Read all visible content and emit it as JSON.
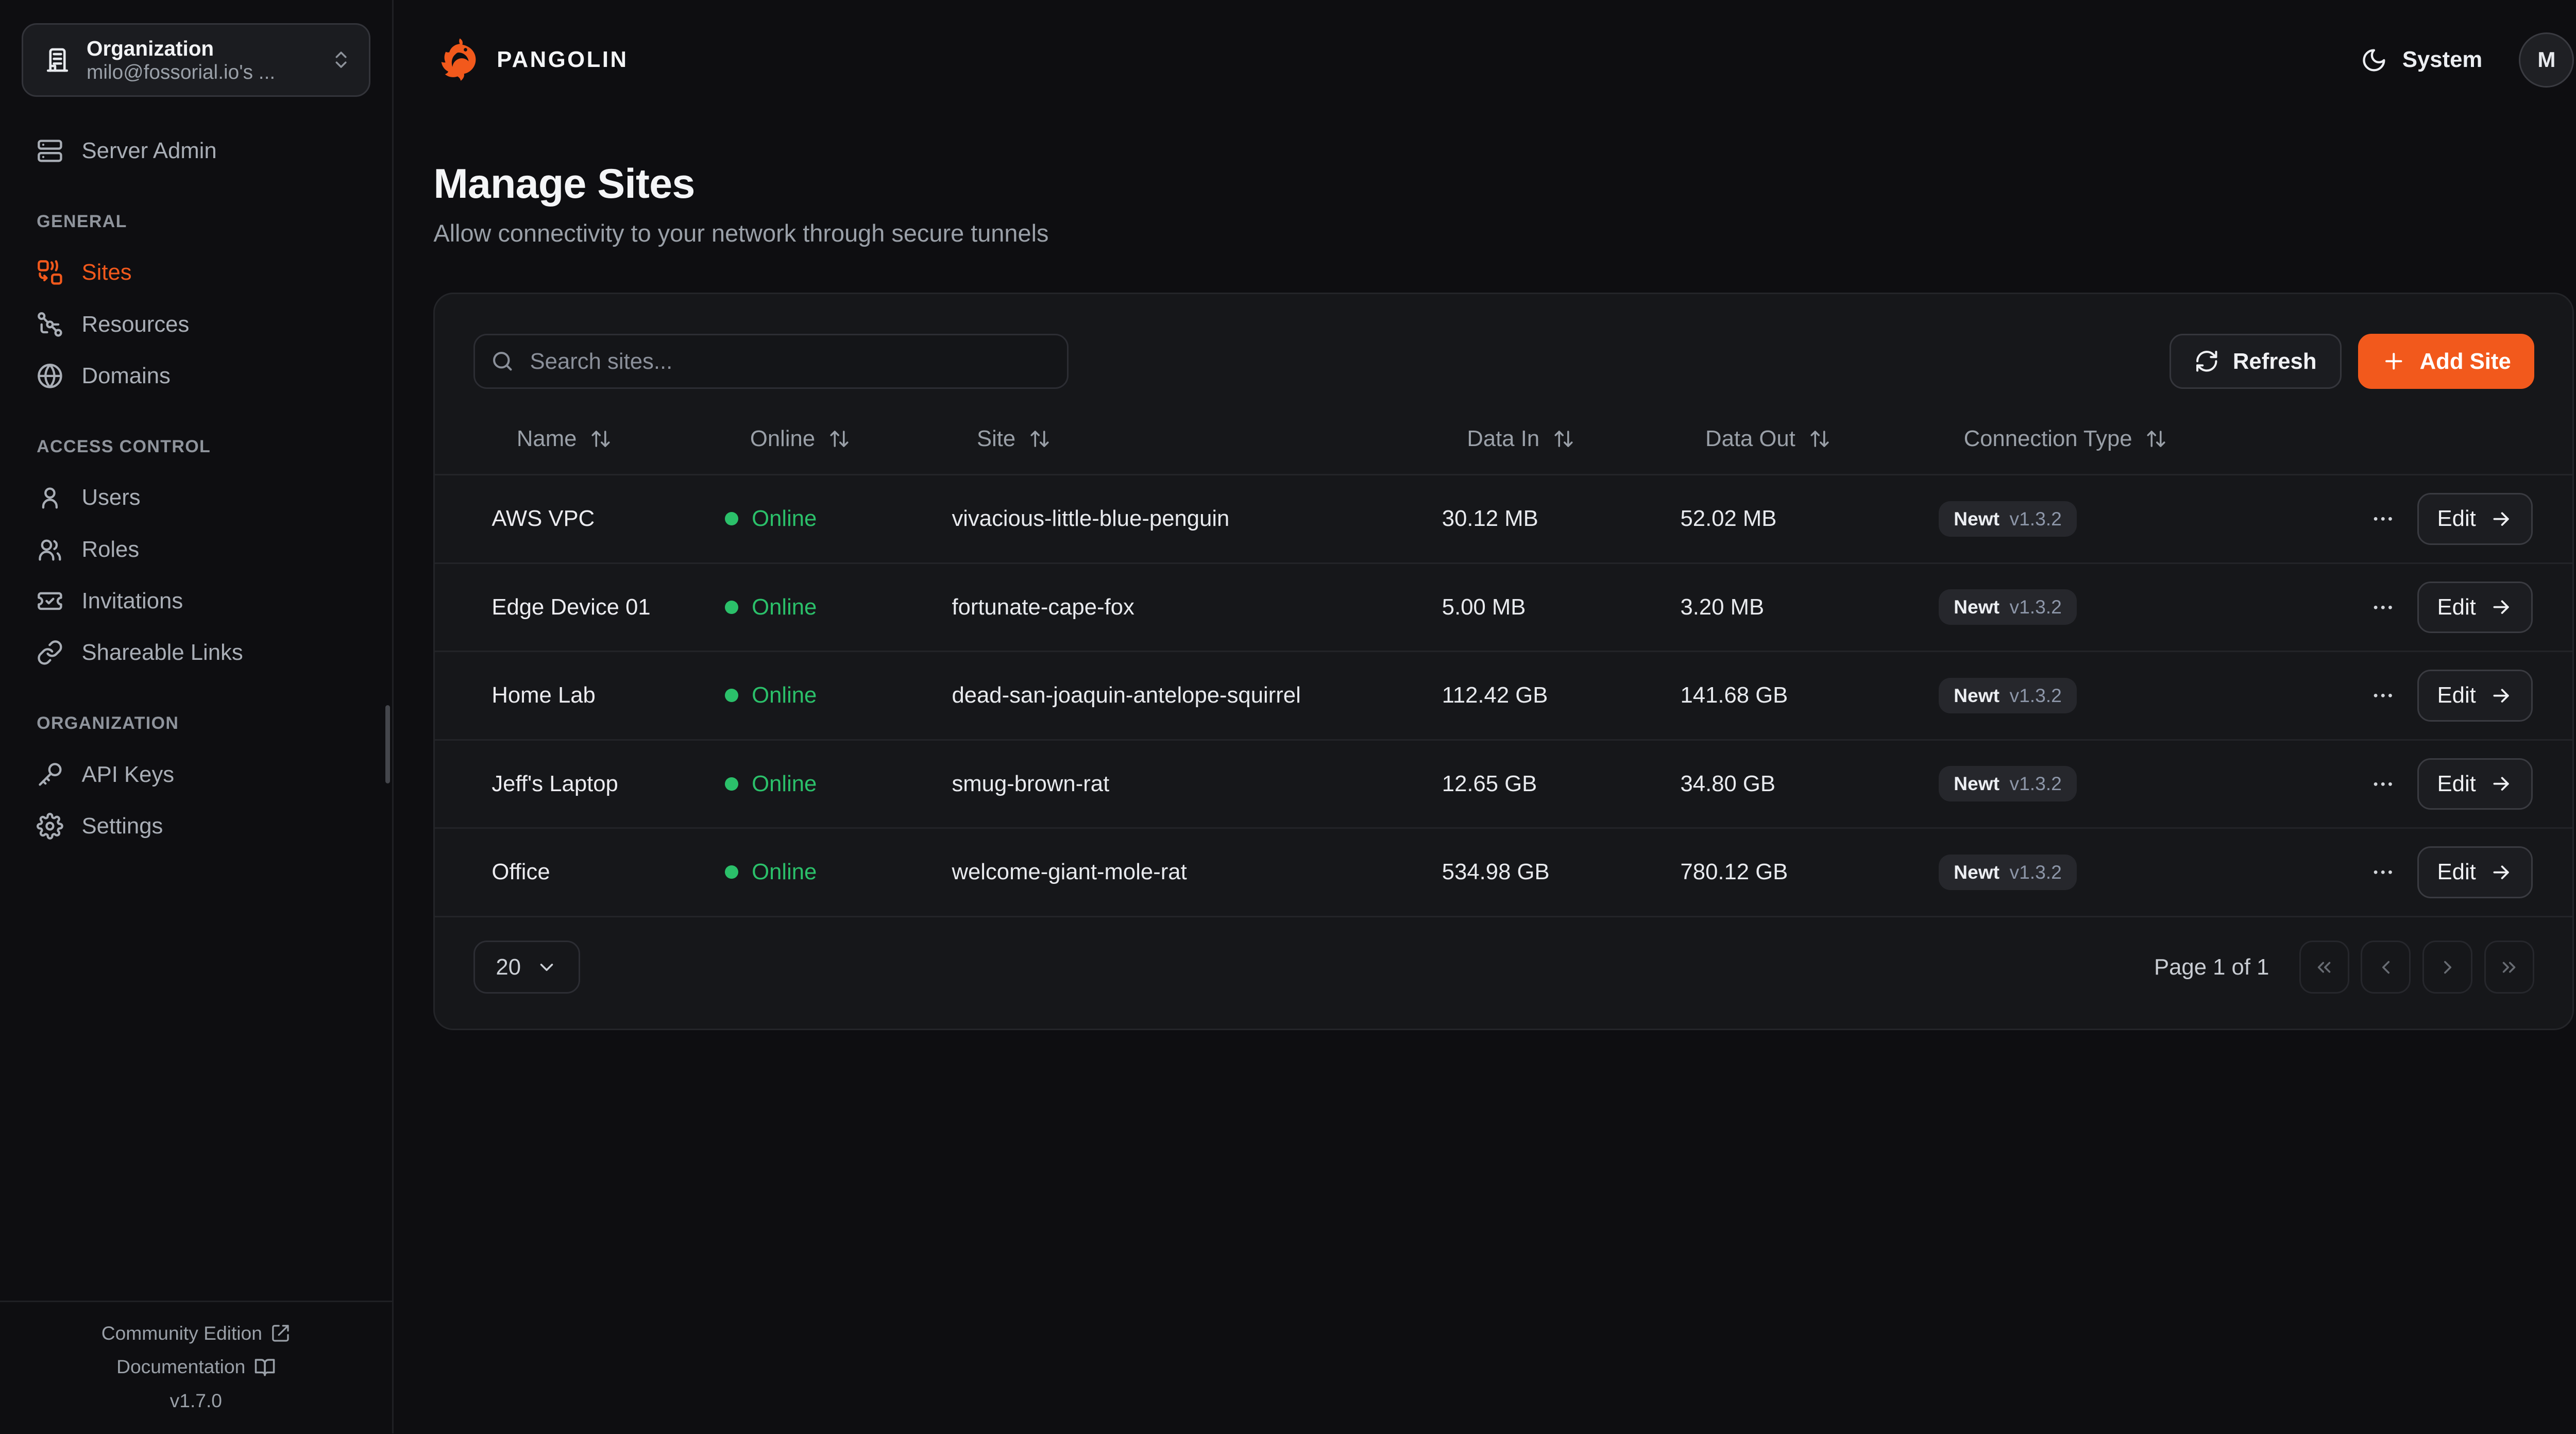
{
  "org_selector": {
    "label": "Organization",
    "value": "milo@fossorial.io's ..."
  },
  "sidebar": {
    "server_admin": "Server Admin",
    "sections": [
      {
        "label": "GENERAL",
        "items": [
          {
            "label": "Sites"
          },
          {
            "label": "Resources"
          },
          {
            "label": "Domains"
          }
        ]
      },
      {
        "label": "ACCESS CONTROL",
        "items": [
          {
            "label": "Users"
          },
          {
            "label": "Roles"
          },
          {
            "label": "Invitations"
          },
          {
            "label": "Shareable Links"
          }
        ]
      },
      {
        "label": "ORGANIZATION",
        "items": [
          {
            "label": "API Keys"
          },
          {
            "label": "Settings"
          }
        ]
      }
    ],
    "footer": {
      "community": "Community Edition",
      "documentation": "Documentation",
      "version": "v1.7.0"
    }
  },
  "header": {
    "brand": "PANGOLIN",
    "theme_label": "System",
    "avatar_initial": "M"
  },
  "page": {
    "title": "Manage Sites",
    "subtitle": "Allow connectivity to your network through secure tunnels"
  },
  "toolbar": {
    "search_placeholder": "Search sites...",
    "refresh_label": "Refresh",
    "add_site_label": "Add Site"
  },
  "table": {
    "columns": [
      "Name",
      "Online",
      "Site",
      "Data In",
      "Data Out",
      "Connection Type"
    ],
    "edit_label": "Edit",
    "rows": [
      {
        "name": "AWS VPC",
        "status": "Online",
        "site": "vivacious-little-blue-penguin",
        "data_in": "30.12 MB",
        "data_out": "52.02 MB",
        "client": "Newt",
        "version": "v1.3.2"
      },
      {
        "name": "Edge Device 01",
        "status": "Online",
        "site": "fortunate-cape-fox",
        "data_in": "5.00 MB",
        "data_out": "3.20 MB",
        "client": "Newt",
        "version": "v1.3.2"
      },
      {
        "name": "Home Lab",
        "status": "Online",
        "site": "dead-san-joaquin-antelope-squirrel",
        "data_in": "112.42 GB",
        "data_out": "141.68 GB",
        "client": "Newt",
        "version": "v1.3.2"
      },
      {
        "name": "Jeff's Laptop",
        "status": "Online",
        "site": "smug-brown-rat",
        "data_in": "12.65 GB",
        "data_out": "34.80 GB",
        "client": "Newt",
        "version": "v1.3.2"
      },
      {
        "name": "Office",
        "status": "Online",
        "site": "welcome-giant-mole-rat",
        "data_in": "534.98 GB",
        "data_out": "780.12 GB",
        "client": "Newt",
        "version": "v1.3.2"
      }
    ]
  },
  "pagination": {
    "page_size": "20",
    "page_label": "Page 1 of 1"
  },
  "colors": {
    "accent": "#F2591C",
    "online_green": "#2BC06A",
    "background": "#0E0E11",
    "card": "#16171A"
  }
}
